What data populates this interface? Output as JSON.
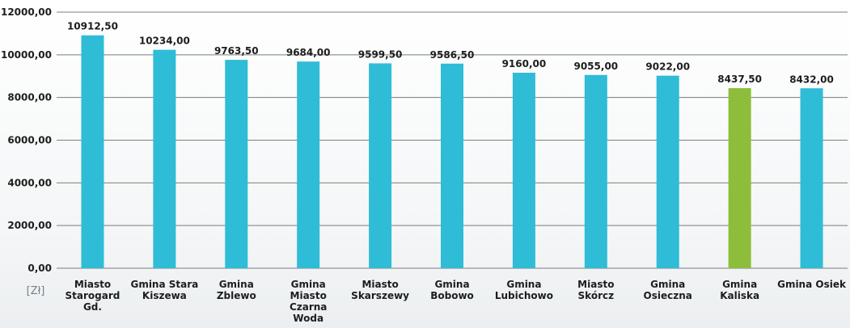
{
  "chart_data": {
    "type": "bar",
    "title": "",
    "xlabel": "",
    "ylabel": "[Zł]",
    "ylim": [
      0,
      12000
    ],
    "yticks": [
      0,
      2000,
      4000,
      6000,
      8000,
      10000,
      12000
    ],
    "ytick_labels": [
      "0,00",
      "2000,00",
      "4000,00",
      "6000,00",
      "8000,00",
      "10000,00",
      "12000,00"
    ],
    "grid": true,
    "legend": "none",
    "categories": [
      "Miasto Starogard Gd.",
      "Gmina Stara Kiszewa",
      "Gmina Zblewo",
      "Gmina Miasto Czarna Woda",
      "Miasto Skarszewy",
      "Gmina Bobowo",
      "Gmina Lubichowo",
      "Miasto Skórcz",
      "Gmina Osieczna",
      "Gmina Kaliska",
      "Gmina Osiek"
    ],
    "category_lines": [
      [
        "Miasto",
        "Starogard",
        "Gd."
      ],
      [
        "Gmina Stara",
        "Kiszewa"
      ],
      [
        "Gmina",
        "Zblewo"
      ],
      [
        "Gmina",
        "Miasto",
        "Czarna",
        "Woda"
      ],
      [
        "Miasto",
        "Skarszewy"
      ],
      [
        "Gmina",
        "Bobowo"
      ],
      [
        "Gmina",
        "Lubichowo"
      ],
      [
        "Miasto",
        "Skórcz"
      ],
      [
        "Gmina",
        "Osieczna"
      ],
      [
        "Gmina",
        "Kaliska"
      ],
      [
        "Gmina Osiek"
      ]
    ],
    "values": [
      10912.5,
      10234.0,
      9763.5,
      9684.0,
      9599.5,
      9586.5,
      9160.0,
      9055.0,
      9022.0,
      8437.5,
      8432.0
    ],
    "value_labels": [
      "10912,50",
      "10234,00",
      "9763,50",
      "9684,00",
      "9599,50",
      "9586,50",
      "9160,00",
      "9055,00",
      "9022,00",
      "8437,50",
      "8432,00"
    ],
    "colors": {
      "default": "#2fbcd6",
      "highlight": "#8dbd3a",
      "gridline": "#7d7d7d",
      "text": "#1d1d1d"
    },
    "highlight_index": 9
  }
}
